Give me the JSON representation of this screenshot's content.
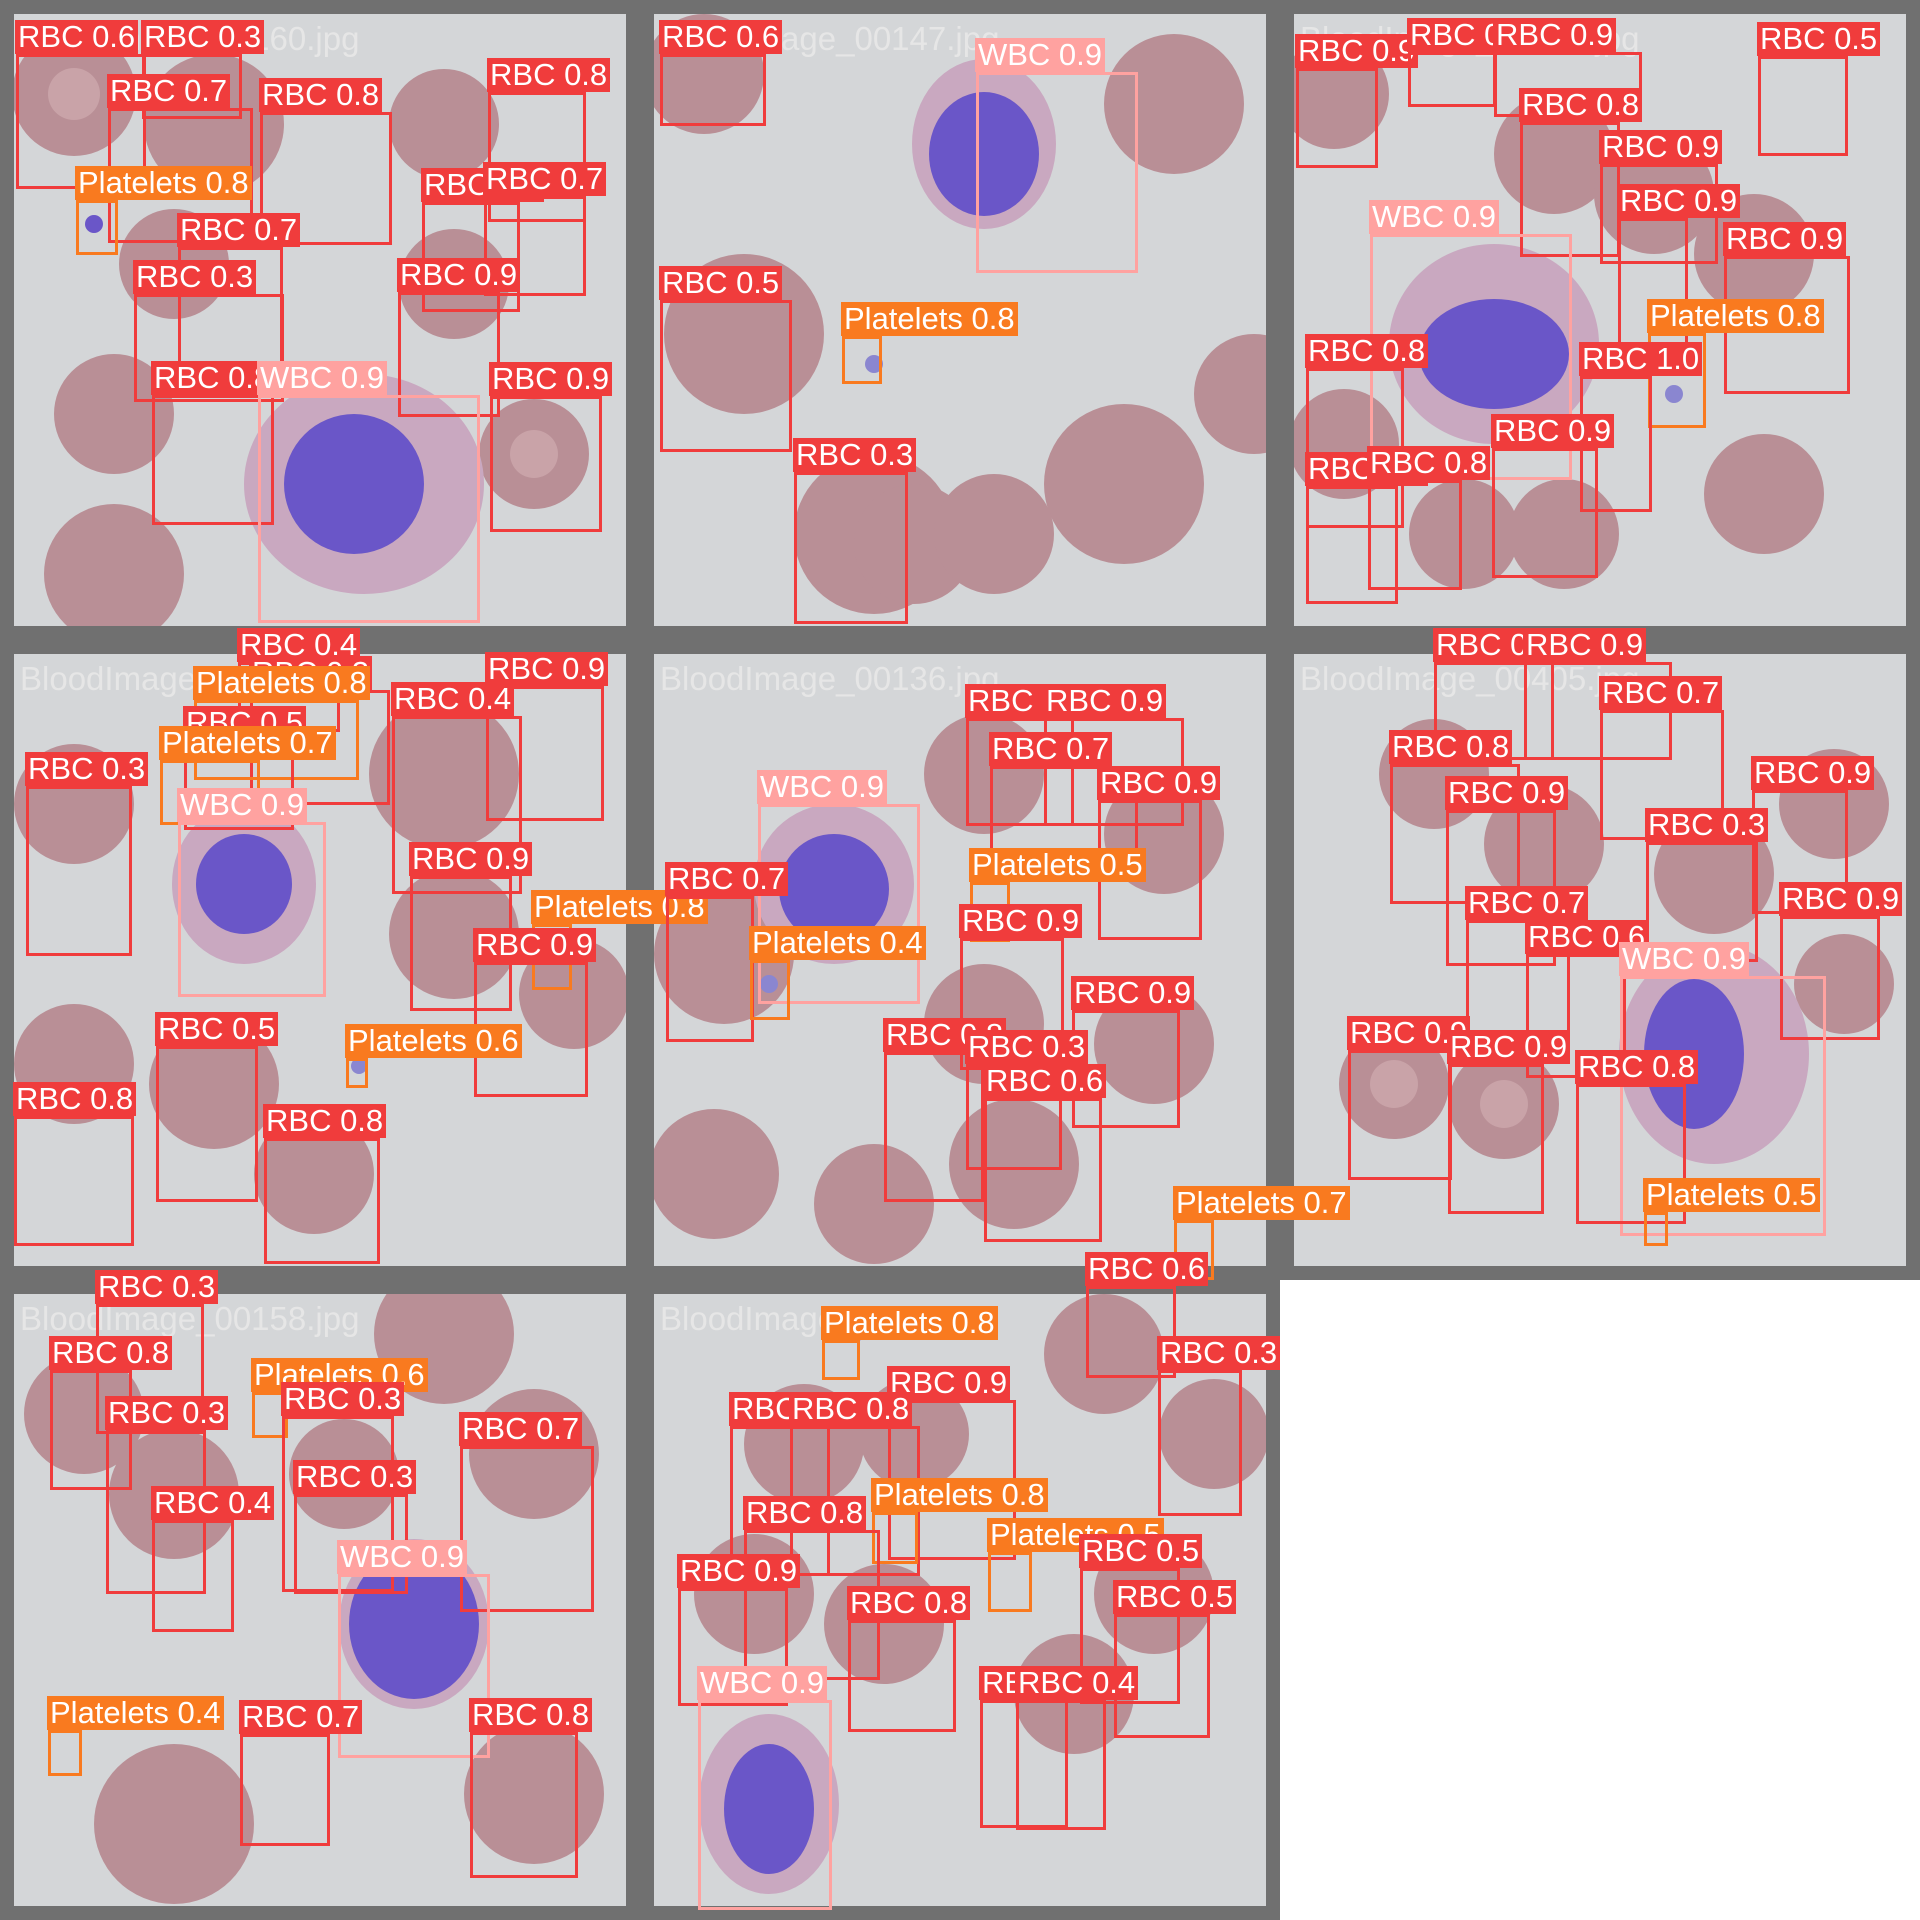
{
  "tiles": [
    {
      "filename": "BloodImage_00160.jpg"
    },
    {
      "filename": "BloodImage_00147.jpg"
    },
    {
      "filename": "BloodImage_00184.jpg"
    },
    {
      "filename": "BloodImage_00137.jpg"
    },
    {
      "filename": "BloodImage_00136.jpg"
    },
    {
      "filename": "BloodImage_00405.jpg"
    },
    {
      "filename": "BloodImage_00158.jpg"
    },
    {
      "filename": "BloodImage_00125.jpg"
    }
  ],
  "colors": {
    "RBC": "#f03c3c",
    "WBC": "#ffa2a0",
    "Platelets": "#f97a1f",
    "background": "#d4d6d8",
    "rbc_fill": "#b98f96",
    "wbc_nucleus": "#6a56c8"
  },
  "detections": [
    [
      "RBC",
      "0.6"
    ],
    [
      "RBC",
      "0.3"
    ],
    [
      "RBC",
      "0.7"
    ],
    [
      "RBC",
      "0.8"
    ],
    [
      "RBC",
      "0.8"
    ],
    [
      "Platelets",
      "0.8"
    ],
    [
      "RBC",
      "0.9"
    ],
    [
      "RBC",
      "0.7"
    ],
    [
      "RBC",
      "0.7"
    ],
    [
      "RBC",
      "0.3"
    ],
    [
      "RBC",
      "0.9"
    ],
    [
      "RBC",
      "0.8"
    ],
    [
      "WBC",
      "0.9"
    ],
    [
      "RBC",
      "0.9"
    ],
    [
      "RBC",
      "0.6"
    ],
    [
      "WBC",
      "0.9"
    ],
    [
      "RBC",
      "0.5"
    ],
    [
      "Platelets",
      "0.8"
    ],
    [
      "RBC",
      "0.3"
    ],
    [
      "RBC",
      "0.9"
    ],
    [
      "RBC",
      "0.9"
    ],
    [
      "RBC",
      "0.9"
    ],
    [
      "RBC",
      "0.5"
    ],
    [
      "RBC",
      "0.8"
    ],
    [
      "RBC",
      "0.9"
    ],
    [
      "RBC",
      "0.9"
    ],
    [
      "WBC",
      "0.9"
    ],
    [
      "RBC",
      "0.9"
    ],
    [
      "RBC",
      "0.8"
    ],
    [
      "Platelets",
      "0.8"
    ],
    [
      "RBC",
      "1.0"
    ],
    [
      "RBC",
      "0.9"
    ],
    [
      "RBC",
      "0.9"
    ],
    [
      "RBC",
      "0.8"
    ],
    [
      "RBC",
      "0.4"
    ],
    [
      "RBC",
      "0.3"
    ],
    [
      "Platelets",
      "0.8"
    ],
    [
      "RBC",
      "0.9"
    ],
    [
      "RBC",
      "0.4"
    ],
    [
      "RBC",
      "0.5"
    ],
    [
      "Platelets",
      "0.7"
    ],
    [
      "RBC",
      "0.3"
    ],
    [
      "WBC",
      "0.9"
    ],
    [
      "RBC",
      "0.9"
    ],
    [
      "Platelets",
      "0.8"
    ],
    [
      "RBC",
      "0.9"
    ],
    [
      "RBC",
      "0.5"
    ],
    [
      "Platelets",
      "0.6"
    ],
    [
      "RBC",
      "0.8"
    ],
    [
      "RBC",
      "0.8"
    ],
    [
      "RBC",
      "0.6"
    ],
    [
      "RBC",
      "0.9"
    ],
    [
      "RBC",
      "0.7"
    ],
    [
      "RBC",
      "0.9"
    ],
    [
      "WBC",
      "0.9"
    ],
    [
      "Platelets",
      "0.5"
    ],
    [
      "RBC",
      "0.7"
    ],
    [
      "Platelets",
      "0.4"
    ],
    [
      "RBC",
      "0.9"
    ],
    [
      "RBC",
      "0.9"
    ],
    [
      "RBC",
      "0.8"
    ],
    [
      "RBC",
      "0.3"
    ],
    [
      "RBC",
      "0.6"
    ],
    [
      "Platelets",
      "0.7"
    ],
    [
      "RBC",
      "0.9"
    ],
    [
      "RBC",
      "0.9"
    ],
    [
      "RBC",
      "0.7"
    ],
    [
      "RBC",
      "0.8"
    ],
    [
      "RBC",
      "0.9"
    ],
    [
      "RBC",
      "0.9"
    ],
    [
      "RBC",
      "0.3"
    ],
    [
      "RBC",
      "0.7"
    ],
    [
      "RBC",
      "0.9"
    ],
    [
      "RBC",
      "0.6"
    ],
    [
      "WBC",
      "0.9"
    ],
    [
      "RBC",
      "0.9"
    ],
    [
      "RBC",
      "0.9"
    ],
    [
      "RBC",
      "0.8"
    ],
    [
      "Platelets",
      "0.5"
    ],
    [
      "RBC",
      "0.3"
    ],
    [
      "RBC",
      "0.8"
    ],
    [
      "Platelets",
      "0.6"
    ],
    [
      "RBC",
      "0.3"
    ],
    [
      "RBC",
      "0.3"
    ],
    [
      "RBC",
      "0.7"
    ],
    [
      "RBC",
      "0.3"
    ],
    [
      "RBC",
      "0.4"
    ],
    [
      "WBC",
      "0.9"
    ],
    [
      "Platelets",
      "0.4"
    ],
    [
      "RBC",
      "0.7"
    ],
    [
      "RBC",
      "0.8"
    ],
    [
      "Platelets",
      "0.8"
    ],
    [
      "RBC",
      "0.6"
    ],
    [
      "RBC",
      "0.3"
    ],
    [
      "RBC",
      "0.9"
    ],
    [
      "RBC",
      "0.8"
    ],
    [
      "RBC",
      "0.8"
    ],
    [
      "Platelets",
      "0.8"
    ],
    [
      "Platelets",
      "0.5"
    ],
    [
      "RBC",
      "0.8"
    ],
    [
      "RBC",
      "0.5"
    ],
    [
      "RBC",
      "0.5"
    ],
    [
      "RBC",
      "0.9"
    ],
    [
      "RBC",
      "0.8"
    ],
    [
      "WBC",
      "0.9"
    ],
    [
      "RBC",
      "0.4"
    ],
    [
      "RBC",
      "0.4"
    ]
  ]
}
